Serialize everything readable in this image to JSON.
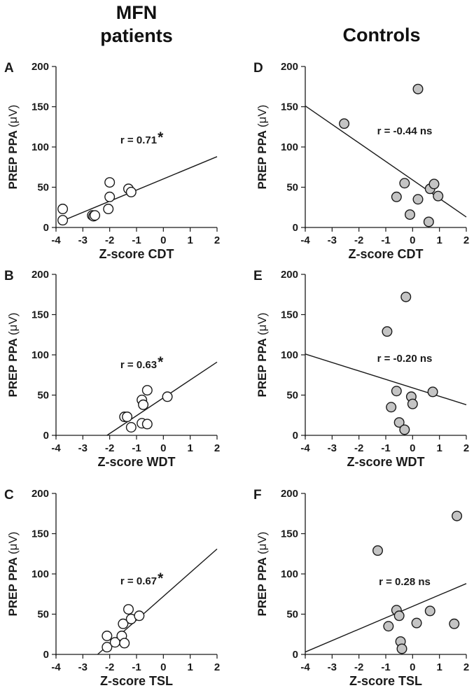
{
  "columns": {
    "left": "MFN\npatients",
    "right": "Controls"
  },
  "y_label_prefix": "PREP PPA",
  "y_label_unit": "(μV)",
  "chart_data": [
    {
      "type": "scatter",
      "panel": "A",
      "xlabel": "Z-score CDT",
      "ylabel": "PREP PPA (μV)",
      "xlim": [
        -4,
        2
      ],
      "ylim": [
        0,
        200
      ],
      "xticks": [
        -4,
        -3,
        -2,
        -1,
        0,
        1,
        2
      ],
      "yticks": [
        0,
        50,
        100,
        150,
        200
      ],
      "annotation": "r = 0.71",
      "significance": "*",
      "marker": "open",
      "points": [
        [
          -3.75,
          23
        ],
        [
          -3.75,
          9
        ],
        [
          -2.65,
          15
        ],
        [
          -2.6,
          14
        ],
        [
          -2.55,
          15
        ],
        [
          -2.0,
          56
        ],
        [
          -2.0,
          38
        ],
        [
          -2.05,
          23
        ],
        [
          -1.3,
          48
        ],
        [
          -1.2,
          44
        ]
      ],
      "fit": [
        [
          -3.85,
          7
        ],
        [
          2.0,
          88
        ]
      ]
    },
    {
      "type": "scatter",
      "panel": "B",
      "xlabel": "Z-score WDT",
      "ylabel": "PREP PPA (μV)",
      "xlim": [
        -4,
        2
      ],
      "ylim": [
        0,
        200
      ],
      "xticks": [
        -4,
        -3,
        -2,
        -1,
        0,
        1,
        2
      ],
      "yticks": [
        0,
        50,
        100,
        150,
        200
      ],
      "annotation": "r = 0.63",
      "significance": "*",
      "marker": "open",
      "points": [
        [
          -1.45,
          23
        ],
        [
          -1.35,
          23
        ],
        [
          -1.2,
          10
        ],
        [
          -0.8,
          44
        ],
        [
          -0.75,
          38
        ],
        [
          -0.8,
          15
        ],
        [
          -0.6,
          14
        ],
        [
          -0.6,
          56
        ],
        [
          0.15,
          48
        ]
      ],
      "fit": [
        [
          -2.1,
          0
        ],
        [
          2.0,
          91
        ]
      ]
    },
    {
      "type": "scatter",
      "panel": "C",
      "xlabel": "Z-score TSL",
      "ylabel": "PREP PPA (μV)",
      "xlim": [
        -4,
        2
      ],
      "ylim": [
        0,
        200
      ],
      "xticks": [
        -4,
        -3,
        -2,
        -1,
        0,
        1,
        2
      ],
      "yticks": [
        0,
        50,
        100,
        150,
        200
      ],
      "annotation": "r = 0.67",
      "significance": "*",
      "marker": "open",
      "points": [
        [
          -2.1,
          23
        ],
        [
          -2.1,
          9
        ],
        [
          -1.8,
          15
        ],
        [
          -1.55,
          23
        ],
        [
          -1.5,
          38
        ],
        [
          -1.45,
          14
        ],
        [
          -1.3,
          56
        ],
        [
          -1.2,
          44
        ],
        [
          -0.9,
          48
        ]
      ],
      "fit": [
        [
          -2.45,
          0
        ],
        [
          2.0,
          131
        ]
      ]
    },
    {
      "type": "scatter",
      "panel": "D",
      "xlabel": "Z-score CDT",
      "ylabel": "PREP PPA (μV)",
      "xlim": [
        -4,
        2
      ],
      "ylim": [
        0,
        200
      ],
      "xticks": [
        -4,
        -3,
        -2,
        -1,
        0,
        1,
        2
      ],
      "yticks": [
        0,
        50,
        100,
        150,
        200
      ],
      "annotation": "r = -0.44 ns",
      "significance": "",
      "marker": "filled",
      "points": [
        [
          -2.55,
          129
        ],
        [
          0.2,
          172
        ],
        [
          -0.3,
          55
        ],
        [
          -0.6,
          38
        ],
        [
          -0.1,
          16
        ],
        [
          0.2,
          35
        ],
        [
          0.65,
          48
        ],
        [
          0.8,
          54
        ],
        [
          0.95,
          39
        ],
        [
          0.6,
          7
        ]
      ],
      "fit": [
        [
          -4.0,
          151
        ],
        [
          2.0,
          13
        ]
      ]
    },
    {
      "type": "scatter",
      "panel": "E",
      "xlabel": "Z-score WDT",
      "ylabel": "PREP PPA (μV)",
      "xlim": [
        -4,
        2
      ],
      "ylim": [
        0,
        200
      ],
      "xticks": [
        -4,
        -3,
        -2,
        -1,
        0,
        1,
        2
      ],
      "yticks": [
        0,
        50,
        100,
        150,
        200
      ],
      "annotation": "r = -0.20 ns",
      "significance": "",
      "marker": "filled",
      "points": [
        [
          -0.95,
          129
        ],
        [
          -0.25,
          172
        ],
        [
          -0.6,
          55
        ],
        [
          -0.8,
          35
        ],
        [
          -0.5,
          16
        ],
        [
          -0.3,
          7
        ],
        [
          -0.05,
          48
        ],
        [
          0.0,
          39
        ],
        [
          0.75,
          54
        ]
      ],
      "fit": [
        [
          -4.0,
          101
        ],
        [
          2.0,
          38
        ]
      ]
    },
    {
      "type": "scatter",
      "panel": "F",
      "xlabel": "Z-score TSL",
      "ylabel": "PREP PPA (μV)",
      "xlim": [
        -4,
        2
      ],
      "ylim": [
        0,
        200
      ],
      "xticks": [
        -4,
        -3,
        -2,
        -1,
        0,
        1,
        2
      ],
      "yticks": [
        0,
        50,
        100,
        150,
        200
      ],
      "annotation": "r = 0.28 ns",
      "significance": "",
      "marker": "filled",
      "points": [
        [
          -1.3,
          129
        ],
        [
          1.65,
          172
        ],
        [
          -0.6,
          55
        ],
        [
          -0.5,
          48
        ],
        [
          -0.9,
          35
        ],
        [
          -0.45,
          16
        ],
        [
          -0.4,
          7
        ],
        [
          0.15,
          39
        ],
        [
          0.65,
          54
        ],
        [
          1.55,
          38
        ]
      ],
      "fit": [
        [
          -4.0,
          3
        ],
        [
          2.0,
          88
        ]
      ]
    }
  ]
}
